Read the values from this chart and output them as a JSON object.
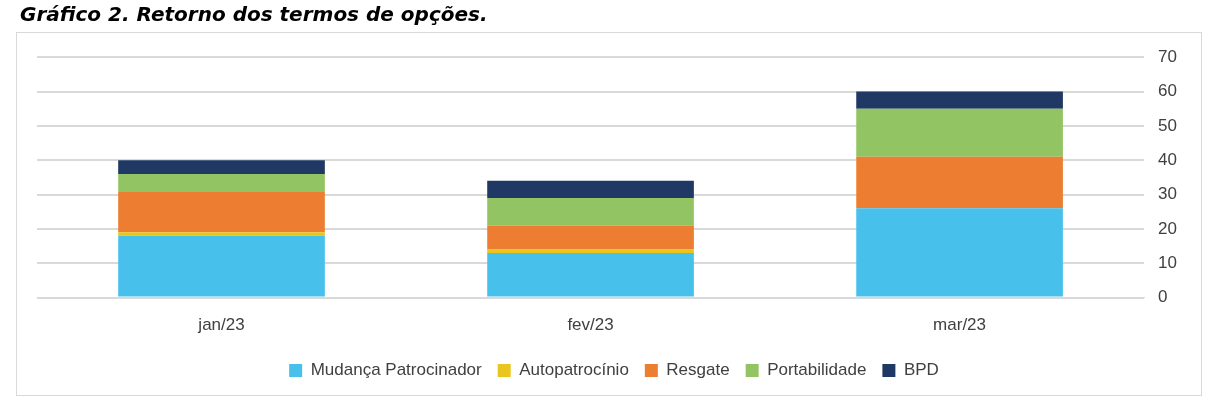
{
  "chart_data": {
    "type": "bar",
    "title": "Gráfico 2. Retorno dos termos de opções.",
    "categories": [
      "jan/23",
      "fev/23",
      "mar/23"
    ],
    "stacked": true,
    "series": [
      {
        "name": "Mudança Patrocinador",
        "color": "#48c0ec",
        "values": [
          18,
          13,
          26
        ]
      },
      {
        "name": "Autopatrocínio",
        "color": "#e8c61e",
        "values": [
          1,
          1,
          0
        ]
      },
      {
        "name": "Resgate",
        "color": "#ed7d31",
        "values": [
          12,
          7,
          15
        ]
      },
      {
        "name": "Portabilidade",
        "color": "#92c463",
        "values": [
          5,
          8,
          14
        ]
      },
      {
        "name": "BPD",
        "color": "#1f3864",
        "values": [
          4,
          5,
          5
        ]
      }
    ],
    "ylim": [
      0,
      70
    ],
    "yticks": [
      0,
      10,
      20,
      30,
      40,
      50,
      60,
      70
    ],
    "grid": "y",
    "legend": "bottom"
  }
}
